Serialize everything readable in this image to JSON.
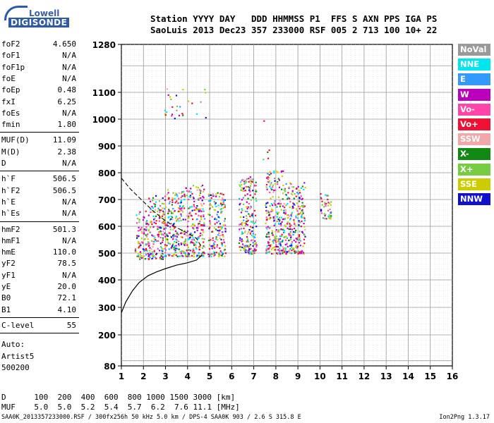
{
  "logo": {
    "top": "Lowell",
    "bottom": "DIGISONDE"
  },
  "header": {
    "labels": "Station YYYY DAY   DDD HHMMSS P1  FFS S AXN PPS IGA PS",
    "values": "SaoLuis 2013 Dec23 357 233000 RSF 005 2 713 100 10+ 22"
  },
  "params": {
    "group1": [
      {
        "name": "foF2",
        "value": "4.650"
      },
      {
        "name": "foF1",
        "value": "N/A"
      },
      {
        "name": "foF1p",
        "value": "N/A"
      },
      {
        "name": "foE",
        "value": "N/A"
      },
      {
        "name": "foEp",
        "value": "0.48"
      },
      {
        "name": "fxI",
        "value": "6.25"
      },
      {
        "name": "foEs",
        "value": "N/A"
      },
      {
        "name": "fmin",
        "value": "1.80"
      }
    ],
    "group2": [
      {
        "name": "MUF(D)",
        "value": "11.09"
      },
      {
        "name": "M(D)",
        "value": "2.38"
      },
      {
        "name": "D",
        "value": "N/A"
      }
    ],
    "group3": [
      {
        "name": "h`F",
        "value": "506.5"
      },
      {
        "name": "h`F2",
        "value": "506.5"
      },
      {
        "name": "h`E",
        "value": "N/A"
      },
      {
        "name": "h`Es",
        "value": "N/A"
      }
    ],
    "group4": [
      {
        "name": "hmF2",
        "value": "501.3"
      },
      {
        "name": "hmF1",
        "value": "N/A"
      },
      {
        "name": "hmE",
        "value": "110.0"
      },
      {
        "name": "yF2",
        "value": "78.5"
      },
      {
        "name": "yF1",
        "value": "N/A"
      },
      {
        "name": "yE",
        "value": "20.0"
      },
      {
        "name": "B0",
        "value": "72.1"
      },
      {
        "name": "B1",
        "value": "4.10"
      }
    ],
    "group5": [
      {
        "name": "C-level",
        "value": "55"
      }
    ]
  },
  "autoscaler": [
    "Auto:",
    "Artist5",
    "500200"
  ],
  "legend": [
    {
      "label": "NoVal",
      "color": "#999999"
    },
    {
      "label": "NNE",
      "color": "#00e5ee"
    },
    {
      "label": "E",
      "color": "#3399ff"
    },
    {
      "label": "W",
      "color": "#bb00bb"
    },
    {
      "label": "Vo-",
      "color": "#ff44aa"
    },
    {
      "label": "Vo+",
      "color": "#ee1133"
    },
    {
      "label": "SSW",
      "color": "#f0a8a8"
    },
    {
      "label": "X-",
      "color": "#118811"
    },
    {
      "label": "X+",
      "color": "#77cc44"
    },
    {
      "label": "SSE",
      "color": "#cccc00"
    },
    {
      "label": "NNW",
      "color": "#1111cc"
    }
  ],
  "bottom_table": {
    "d_row": "D      100  200  400  600  800 1000 1500 3000 [km]",
    "muf_row": "MUF    5.0  5.0  5.2  5.4  5.7  6.2  7.6 11.1 [MHz]"
  },
  "footer": {
    "left": "SAA0K_2013357233000.RSF / 300fx256h 50 kHz 5.0 km / DPS-4 SAA0K 903 / 2.6 S 315.8 E",
    "right": "Ion2Png 1.3.17"
  },
  "chart_data": {
    "type": "scatter",
    "xlim": [
      1,
      16
    ],
    "ylim": [
      80,
      1280
    ],
    "x_ticks": [
      "1",
      "2",
      "3",
      "4",
      "5",
      "6",
      "7",
      "8",
      "9",
      "10",
      "11",
      "12",
      "13",
      "14",
      "15",
      "16"
    ],
    "y_ticks": [
      "80",
      "200",
      "300",
      "400",
      "500",
      "600",
      "700",
      "800",
      "900",
      "1000",
      "1100",
      "1280"
    ],
    "grid": true,
    "clusters": [
      {
        "x": [
          1.6,
          2.2
        ],
        "y": [
          480,
          660
        ]
      },
      {
        "x": [
          2.2,
          2.9
        ],
        "y": [
          480,
          720
        ]
      },
      {
        "x": [
          2.9,
          3.6
        ],
        "y": [
          490,
          740
        ]
      },
      {
        "x": [
          3.6,
          4.2
        ],
        "y": [
          490,
          750
        ]
      },
      {
        "x": [
          4.2,
          4.75
        ],
        "y": [
          490,
          760
        ]
      },
      {
        "x": [
          4.9,
          5.7
        ],
        "y": [
          490,
          730
        ]
      },
      {
        "x": [
          6.3,
          7.1
        ],
        "y": [
          500,
          790
        ]
      },
      {
        "x": [
          7.5,
          8.4
        ],
        "y": [
          500,
          810
        ]
      },
      {
        "x": [
          8.4,
          9.3
        ],
        "y": [
          500,
          770
        ]
      },
      {
        "x": [
          10.0,
          10.5
        ],
        "y": [
          630,
          730
        ]
      },
      {
        "x": [
          2.9,
          4.8
        ],
        "y": [
          1000,
          1120
        ]
      },
      {
        "x": [
          7.4,
          7.7
        ],
        "y": [
          850,
          1000
        ]
      }
    ],
    "profile_curve": [
      {
        "x": 1.0,
        "y": 280
      },
      {
        "x": 1.2,
        "y": 320
      },
      {
        "x": 1.5,
        "y": 360
      },
      {
        "x": 1.8,
        "y": 390
      },
      {
        "x": 2.2,
        "y": 415
      },
      {
        "x": 2.6,
        "y": 430
      },
      {
        "x": 3.0,
        "y": 442
      },
      {
        "x": 3.5,
        "y": 455
      },
      {
        "x": 4.0,
        "y": 464
      },
      {
        "x": 4.4,
        "y": 474
      },
      {
        "x": 4.65,
        "y": 492
      }
    ],
    "profile_dashed": [
      {
        "x": 1.0,
        "y": 780
      },
      {
        "x": 1.4,
        "y": 740
      },
      {
        "x": 1.9,
        "y": 700
      },
      {
        "x": 2.4,
        "y": 660
      },
      {
        "x": 3.0,
        "y": 620
      },
      {
        "x": 3.5,
        "y": 595
      },
      {
        "x": 4.0,
        "y": 575
      },
      {
        "x": 4.4,
        "y": 555
      },
      {
        "x": 4.65,
        "y": 520
      }
    ]
  }
}
